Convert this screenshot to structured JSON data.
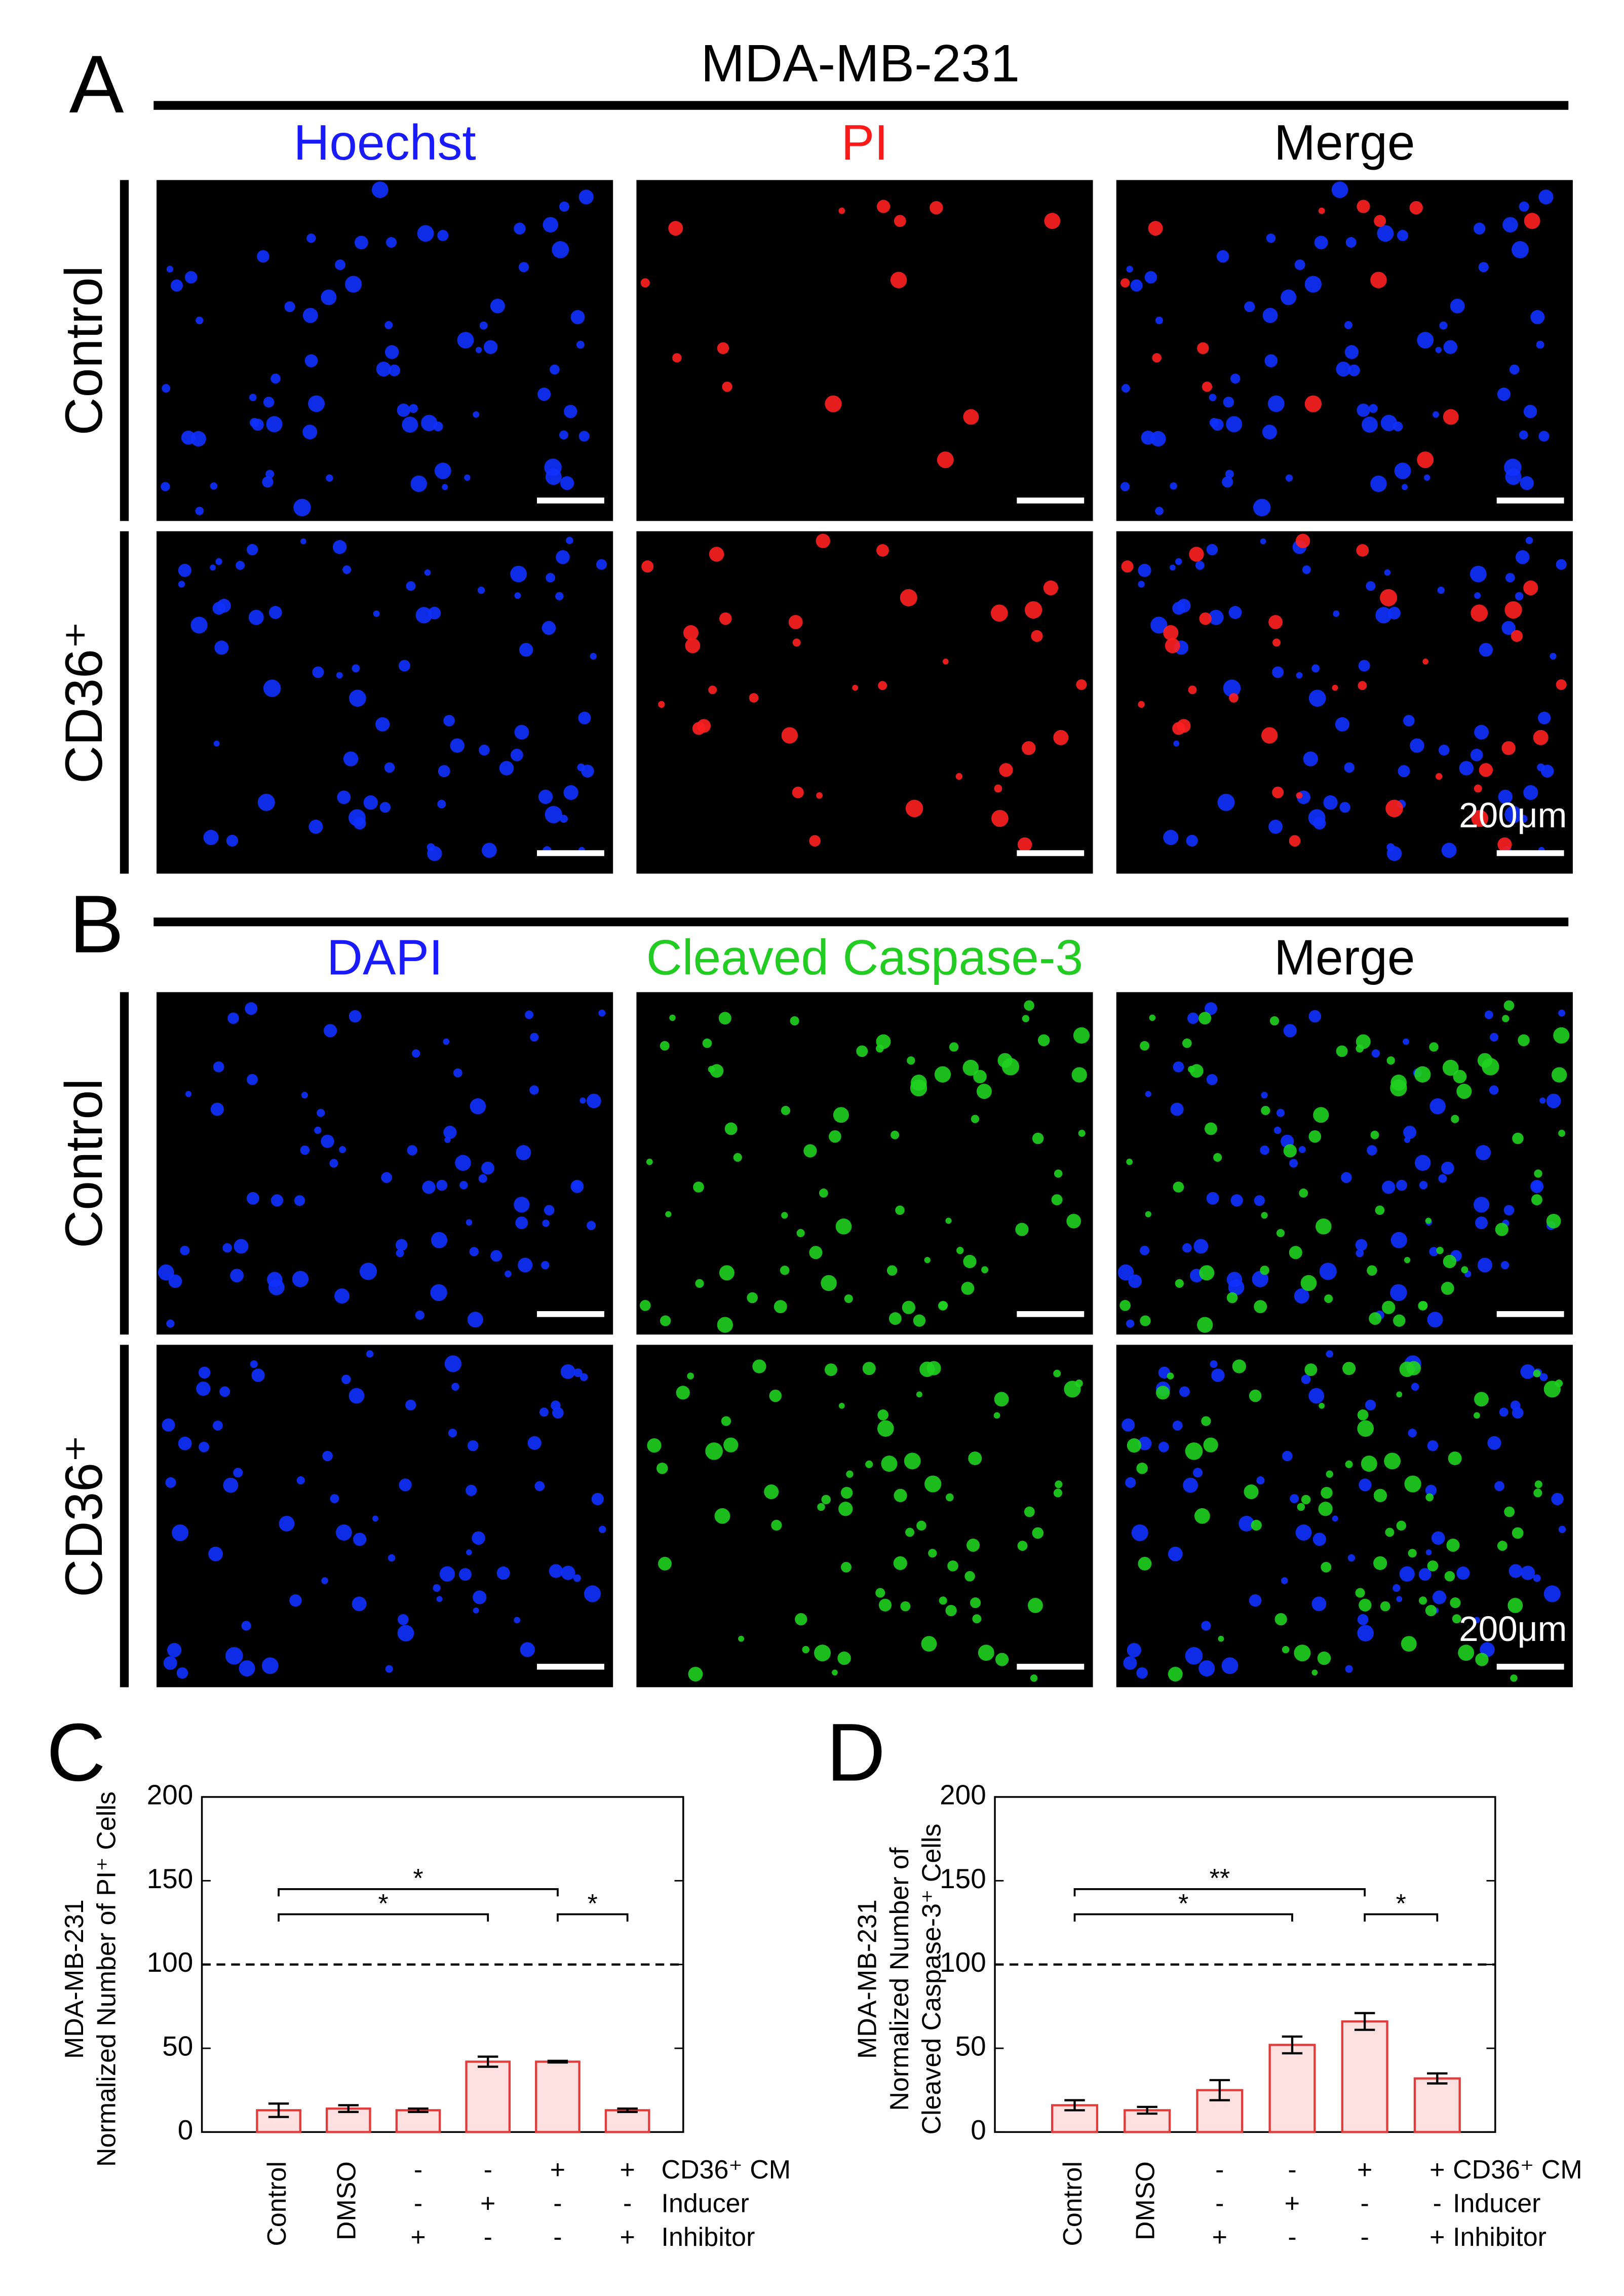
{
  "figure": {
    "panel_labels": [
      "A",
      "B",
      "C",
      "D"
    ],
    "title": "MDA-MB-231",
    "panel_a": {
      "columns": [
        "Hoechst",
        "PI",
        "Merge"
      ],
      "rows": [
        "Control",
        "CD36⁺"
      ],
      "scale_bar": "200μm"
    },
    "panel_b": {
      "columns": [
        "DAPI",
        "Cleaved Caspase-3",
        "Merge"
      ],
      "rows": [
        "Control",
        "CD36⁺"
      ],
      "scale_bar": "200μm"
    }
  },
  "chart_data": [
    {
      "type": "bar",
      "y_label": [
        "MDA-MB-231",
        "Normalized Number of PI⁺ Cells"
      ],
      "categories": [
        "Control",
        "DMSO",
        null,
        null,
        null,
        null
      ],
      "conditions": [
        {
          "name": "CD36⁺ CM",
          "signs": [
            null,
            null,
            "-",
            "-",
            "+",
            "+"
          ]
        },
        {
          "name": "Inducer",
          "signs": [
            null,
            null,
            "-",
            "+",
            "-",
            "-"
          ]
        },
        {
          "name": "Inhibitor",
          "signs": [
            null,
            null,
            "+",
            "-",
            "-",
            "+"
          ]
        }
      ],
      "values": [
        13,
        14,
        13,
        42,
        42,
        13
      ],
      "errors": [
        4,
        2,
        1,
        3,
        0.5,
        1
      ],
      "color": "#e03c3c",
      "fill": "#fde0e0",
      "ylim": [
        0,
        200
      ],
      "yticks": [
        0,
        50,
        100,
        150,
        200
      ],
      "hline": 100,
      "brackets": [
        {
          "from": 0,
          "to": 4,
          "label": "*"
        },
        {
          "from": 0,
          "to": 3,
          "label": "*"
        },
        {
          "from": 4,
          "to": 5,
          "label": "*"
        }
      ]
    },
    {
      "type": "bar",
      "y_label": [
        "MDA-MB-231",
        "Normalized Number of",
        "Cleaved Caspase-3⁺ Cells"
      ],
      "categories": [
        "Control",
        "DMSO",
        null,
        null,
        null,
        null
      ],
      "conditions": [
        {
          "name": "CD36⁺ CM",
          "signs": [
            null,
            null,
            "-",
            "-",
            "+",
            "+"
          ]
        },
        {
          "name": "Inducer",
          "signs": [
            null,
            null,
            "-",
            "+",
            "-",
            "-"
          ]
        },
        {
          "name": "Inhibitor",
          "signs": [
            null,
            null,
            "+",
            "-",
            "-",
            "+"
          ]
        }
      ],
      "values": [
        16,
        13,
        25,
        52,
        66,
        32
      ],
      "errors": [
        3,
        2,
        6,
        5,
        5,
        3
      ],
      "color": "#e03c3c",
      "fill": "#fde0e0",
      "ylim": [
        0,
        200
      ],
      "yticks": [
        0,
        50,
        100,
        150,
        200
      ],
      "hline": 100,
      "brackets": [
        {
          "from": 0,
          "to": 4,
          "label": "**"
        },
        {
          "from": 0,
          "to": 3,
          "label": "*"
        },
        {
          "from": 4,
          "to": 5,
          "label": "*"
        }
      ]
    }
  ]
}
